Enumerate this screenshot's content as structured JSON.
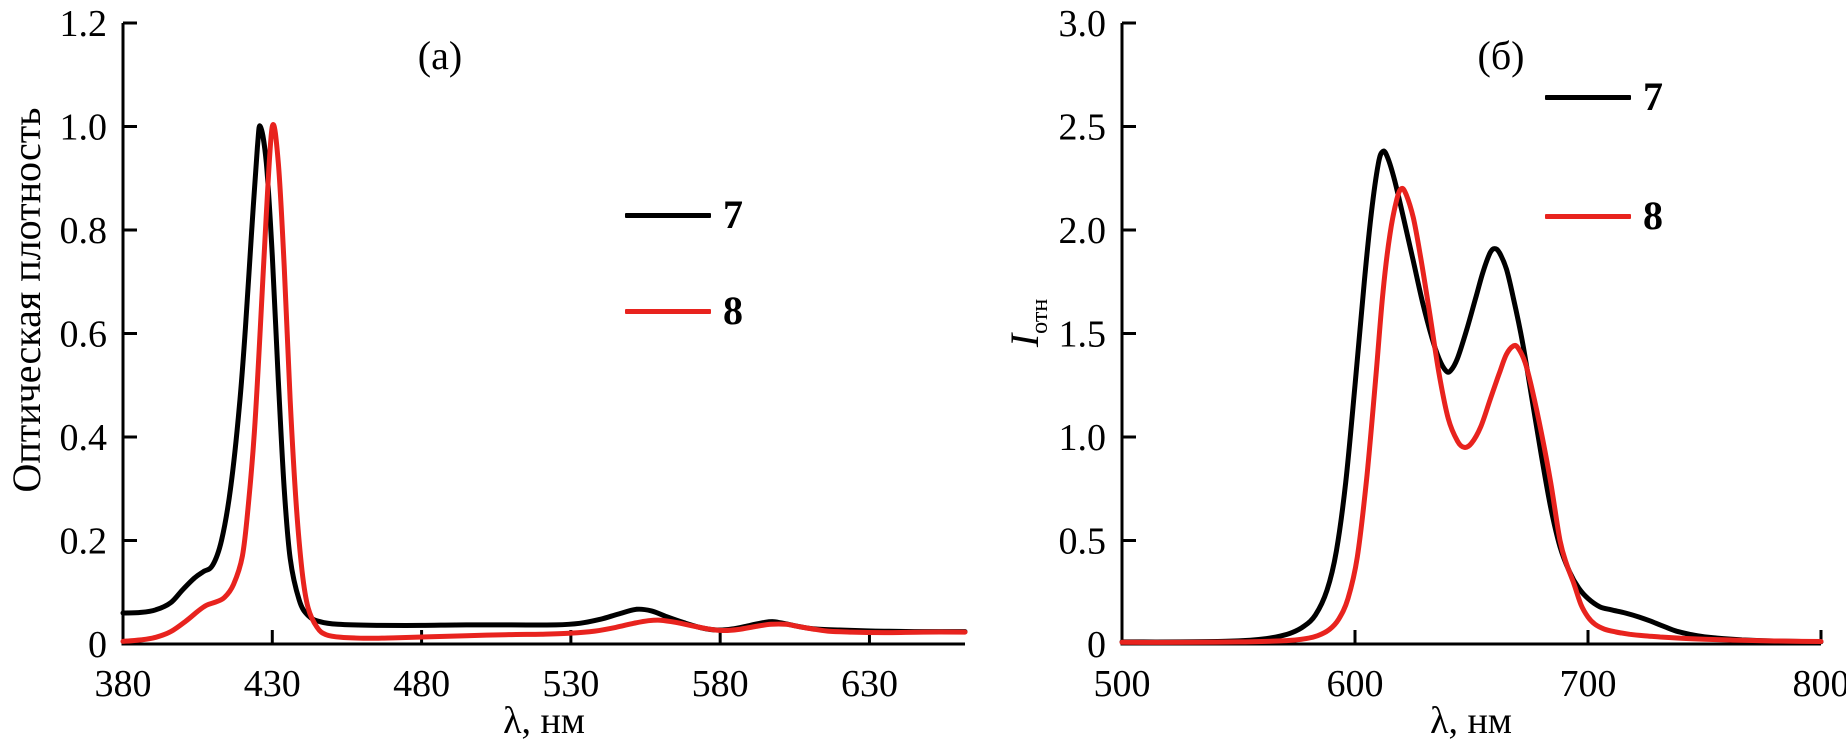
{
  "figure": {
    "background": "#ffffff",
    "axis_color": "#000000",
    "text_color": "#000000"
  },
  "chart_data": [
    {
      "type": "line",
      "panel_label": "(a)",
      "title": "",
      "xlabel": "λ, нм",
      "ylabel": "Оптическая плотность",
      "xlim": [
        380,
        662
      ],
      "ylim": [
        0,
        1.2
      ],
      "x_ticks": [
        380,
        430,
        480,
        530,
        580,
        630
      ],
      "y_ticks": [
        0,
        0.2,
        0.4,
        0.6,
        0.8,
        1.0,
        1.2
      ],
      "y_tick_labels": [
        "0",
        "0.2",
        "0.4",
        "0.6",
        "0.8",
        "1.0",
        "1.2"
      ],
      "grid": false,
      "legend_position": "upper right inside",
      "series": [
        {
          "name": "7",
          "color": "#000000",
          "points": [
            [
              380,
              0.06
            ],
            [
              386,
              0.061
            ],
            [
              391,
              0.066
            ],
            [
              396,
              0.08
            ],
            [
              400,
              0.105
            ],
            [
              404,
              0.128
            ],
            [
              407,
              0.14
            ],
            [
              410,
              0.152
            ],
            [
              413,
              0.2
            ],
            [
              416,
              0.3
            ],
            [
              419,
              0.46
            ],
            [
              421,
              0.61
            ],
            [
              423,
              0.79
            ],
            [
              425,
              0.96
            ],
            [
              426,
              1.0
            ],
            [
              428,
              0.93
            ],
            [
              430,
              0.75
            ],
            [
              432,
              0.51
            ],
            [
              434,
              0.3
            ],
            [
              436,
              0.165
            ],
            [
              439,
              0.085
            ],
            [
              442,
              0.055
            ],
            [
              446,
              0.043
            ],
            [
              452,
              0.038
            ],
            [
              465,
              0.036
            ],
            [
              480,
              0.036
            ],
            [
              495,
              0.037
            ],
            [
              510,
              0.037
            ],
            [
              525,
              0.037
            ],
            [
              533,
              0.04
            ],
            [
              540,
              0.048
            ],
            [
              546,
              0.058
            ],
            [
              552,
              0.067
            ],
            [
              557,
              0.064
            ],
            [
              562,
              0.053
            ],
            [
              568,
              0.041
            ],
            [
              574,
              0.031
            ],
            [
              579,
              0.027
            ],
            [
              584,
              0.029
            ],
            [
              590,
              0.036
            ],
            [
              595,
              0.042
            ],
            [
              598,
              0.043
            ],
            [
              602,
              0.039
            ],
            [
              607,
              0.033
            ],
            [
              612,
              0.029
            ],
            [
              620,
              0.027
            ],
            [
              632,
              0.025
            ],
            [
              645,
              0.024
            ],
            [
              662,
              0.024
            ]
          ]
        },
        {
          "name": "8",
          "color": "#e8231e",
          "points": [
            [
              380,
              0.005
            ],
            [
              386,
              0.008
            ],
            [
              391,
              0.013
            ],
            [
              396,
              0.024
            ],
            [
              401,
              0.044
            ],
            [
              405,
              0.063
            ],
            [
              408,
              0.075
            ],
            [
              411,
              0.081
            ],
            [
              414,
              0.09
            ],
            [
              417,
              0.115
            ],
            [
              420,
              0.17
            ],
            [
              422,
              0.27
            ],
            [
              424,
              0.41
            ],
            [
              426,
              0.61
            ],
            [
              428,
              0.83
            ],
            [
              430,
              1.0
            ],
            [
              432,
              0.93
            ],
            [
              434,
              0.73
            ],
            [
              436,
              0.47
            ],
            [
              438,
              0.27
            ],
            [
              440,
              0.14
            ],
            [
              442,
              0.07
            ],
            [
              445,
              0.032
            ],
            [
              448,
              0.018
            ],
            [
              453,
              0.013
            ],
            [
              462,
              0.011
            ],
            [
              472,
              0.012
            ],
            [
              483,
              0.014
            ],
            [
              495,
              0.016
            ],
            [
              508,
              0.018
            ],
            [
              520,
              0.019
            ],
            [
              530,
              0.021
            ],
            [
              538,
              0.025
            ],
            [
              545,
              0.032
            ],
            [
              551,
              0.04
            ],
            [
              556,
              0.045
            ],
            [
              560,
              0.046
            ],
            [
              565,
              0.042
            ],
            [
              570,
              0.036
            ],
            [
              576,
              0.029
            ],
            [
              581,
              0.026
            ],
            [
              586,
              0.028
            ],
            [
              592,
              0.034
            ],
            [
              597,
              0.038
            ],
            [
              602,
              0.038
            ],
            [
              606,
              0.034
            ],
            [
              611,
              0.029
            ],
            [
              616,
              0.025
            ],
            [
              624,
              0.023
            ],
            [
              635,
              0.022
            ],
            [
              648,
              0.023
            ],
            [
              662,
              0.023
            ]
          ]
        }
      ]
    },
    {
      "type": "line",
      "panel_label": "(б)",
      "title": "",
      "xlabel": "λ, нм",
      "ylabel": "Iотн",
      "ylabel_main": "I",
      "ylabel_sub": "отн",
      "xlim": [
        500,
        800
      ],
      "ylim": [
        0,
        3.0
      ],
      "x_ticks": [
        500,
        600,
        700,
        800
      ],
      "y_ticks": [
        0,
        0.5,
        1.0,
        1.5,
        2.0,
        2.5,
        3.0
      ],
      "y_tick_labels": [
        "0",
        "0.5",
        "1.0",
        "1.5",
        "2.0",
        "2.5",
        "3.0"
      ],
      "grid": false,
      "legend_position": "upper right inside",
      "series": [
        {
          "name": "7",
          "color": "#000000",
          "points": [
            [
              500,
              0.01
            ],
            [
              525,
              0.01
            ],
            [
              545,
              0.013
            ],
            [
              555,
              0.018
            ],
            [
              562,
              0.026
            ],
            [
              568,
              0.038
            ],
            [
              573,
              0.055
            ],
            [
              578,
              0.085
            ],
            [
              583,
              0.14
            ],
            [
              588,
              0.26
            ],
            [
              592,
              0.45
            ],
            [
              596,
              0.78
            ],
            [
              600,
              1.25
            ],
            [
              604,
              1.75
            ],
            [
              607,
              2.08
            ],
            [
              610,
              2.32
            ],
            [
              612,
              2.38
            ],
            [
              614,
              2.35
            ],
            [
              617,
              2.24
            ],
            [
              621,
              2.05
            ],
            [
              625,
              1.85
            ],
            [
              629,
              1.65
            ],
            [
              633,
              1.48
            ],
            [
              636,
              1.38
            ],
            [
              639,
              1.32
            ],
            [
              641,
              1.32
            ],
            [
              644,
              1.38
            ],
            [
              648,
              1.52
            ],
            [
              652,
              1.68
            ],
            [
              655,
              1.8
            ],
            [
              658,
              1.89
            ],
            [
              660,
              1.91
            ],
            [
              662,
              1.89
            ],
            [
              665,
              1.81
            ],
            [
              668,
              1.67
            ],
            [
              672,
              1.45
            ],
            [
              676,
              1.18
            ],
            [
              680,
              0.91
            ],
            [
              684,
              0.66
            ],
            [
              688,
              0.47
            ],
            [
              692,
              0.35
            ],
            [
              696,
              0.27
            ],
            [
              700,
              0.22
            ],
            [
              705,
              0.18
            ],
            [
              710,
              0.165
            ],
            [
              716,
              0.15
            ],
            [
              722,
              0.13
            ],
            [
              727,
              0.11
            ],
            [
              733,
              0.083
            ],
            [
              738,
              0.062
            ],
            [
              744,
              0.046
            ],
            [
              750,
              0.035
            ],
            [
              758,
              0.026
            ],
            [
              766,
              0.02
            ],
            [
              775,
              0.016
            ],
            [
              785,
              0.013
            ],
            [
              800,
              0.011
            ]
          ]
        },
        {
          "name": "8",
          "color": "#e8231e",
          "points": [
            [
              500,
              0.008
            ],
            [
              530,
              0.008
            ],
            [
              550,
              0.01
            ],
            [
              560,
              0.012
            ],
            [
              568,
              0.015
            ],
            [
              574,
              0.019
            ],
            [
              579,
              0.026
            ],
            [
              584,
              0.04
            ],
            [
              589,
              0.07
            ],
            [
              593,
              0.12
            ],
            [
              597,
              0.22
            ],
            [
              601,
              0.42
            ],
            [
              605,
              0.8
            ],
            [
              609,
              1.3
            ],
            [
              612,
              1.7
            ],
            [
              615,
              1.98
            ],
            [
              618,
              2.15
            ],
            [
              620,
              2.2
            ],
            [
              622,
              2.17
            ],
            [
              625,
              2.06
            ],
            [
              628,
              1.88
            ],
            [
              632,
              1.6
            ],
            [
              636,
              1.31
            ],
            [
              640,
              1.09
            ],
            [
              644,
              0.98
            ],
            [
              647,
              0.95
            ],
            [
              650,
              0.97
            ],
            [
              654,
              1.05
            ],
            [
              658,
              1.18
            ],
            [
              662,
              1.31
            ],
            [
              665,
              1.4
            ],
            [
              668,
              1.44
            ],
            [
              670,
              1.43
            ],
            [
              673,
              1.36
            ],
            [
              676,
              1.23
            ],
            [
              680,
              1.02
            ],
            [
              684,
              0.78
            ],
            [
              688,
              0.5
            ],
            [
              691,
              0.38
            ],
            [
              694,
              0.29
            ],
            [
              697,
              0.19
            ],
            [
              700,
              0.13
            ],
            [
              703,
              0.095
            ],
            [
              707,
              0.072
            ],
            [
              712,
              0.058
            ],
            [
              718,
              0.047
            ],
            [
              724,
              0.04
            ],
            [
              731,
              0.034
            ],
            [
              740,
              0.028
            ],
            [
              750,
              0.023
            ],
            [
              762,
              0.019
            ],
            [
              775,
              0.016
            ],
            [
              788,
              0.013
            ],
            [
              800,
              0.012
            ]
          ]
        }
      ]
    }
  ]
}
